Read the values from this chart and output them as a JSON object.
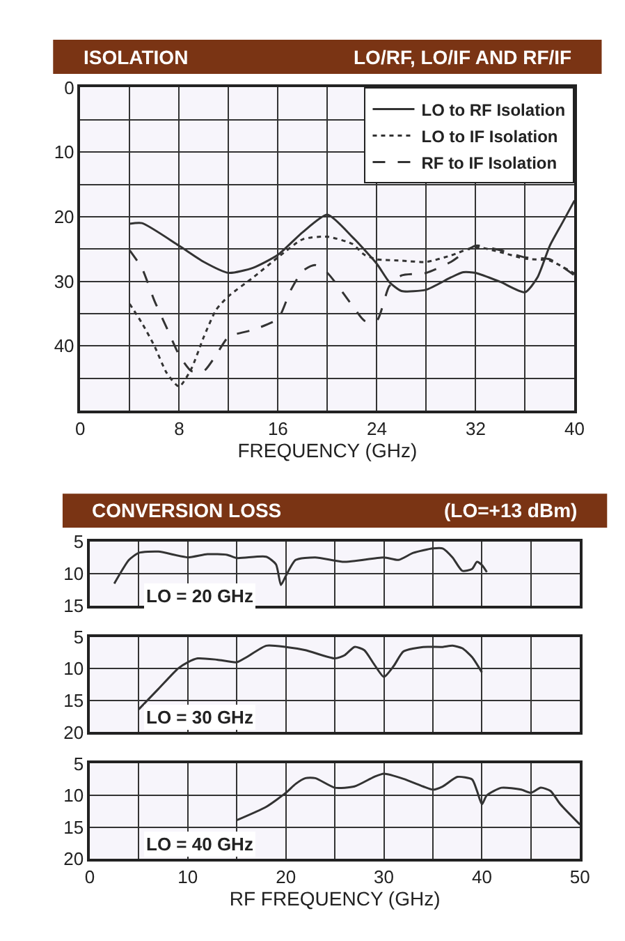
{
  "chart_data": [
    {
      "type": "line",
      "title": "ISOLATION",
      "subtitle": "LO/RF, LO/IF AND RF/IF",
      "xlabel": "FREQUENCY (GHz)",
      "xlim": [
        0,
        40
      ],
      "xticks": [
        0,
        {
          "value": 4,
          "label": null
        },
        8,
        {
          "value": 12,
          "label": null
        },
        16,
        {
          "value": 20,
          "label": null
        },
        24,
        {
          "value": 28,
          "label": null
        },
        32,
        {
          "value": 36,
          "label": null
        },
        40
      ],
      "ylim": [
        50,
        0
      ],
      "yticks": [
        0,
        {
          "value": 5,
          "label": null
        },
        10,
        {
          "value": 15,
          "label": null
        },
        20,
        {
          "value": 25,
          "label": null
        },
        30,
        {
          "value": 35,
          "label": null
        },
        40,
        {
          "value": 45,
          "label": null
        },
        {
          "value": 50,
          "label": null
        }
      ],
      "grid": true,
      "legend": "top right",
      "series": [
        {
          "name": "LO to RF Isolation",
          "color": "#333333",
          "line_style": "solid",
          "x": [
            4,
            5,
            8,
            10,
            12,
            14,
            16,
            18,
            20,
            22,
            24,
            25,
            26,
            28,
            30,
            31,
            32,
            34,
            36,
            37,
            38,
            39,
            40
          ],
          "values": [
            21.1,
            21,
            24.5,
            27,
            28.7,
            27.9,
            25.9,
            22.4,
            19.7,
            23.1,
            27.3,
            30.1,
            31.5,
            31.3,
            29.4,
            28.6,
            28.7,
            30.1,
            31.7,
            29.4,
            24.5,
            21,
            17.5
          ]
        },
        {
          "name": "LO to IF Isolation",
          "color": "#333333",
          "line_style": "dotted",
          "x": [
            4,
            5,
            6,
            7,
            8,
            9,
            10,
            11,
            12,
            14,
            16,
            18,
            20,
            22,
            23,
            24,
            26,
            28,
            30,
            32,
            34,
            36,
            38,
            40
          ],
          "values": [
            33.5,
            36.5,
            40,
            44.2,
            46.3,
            43.5,
            38.6,
            34.4,
            32.3,
            29.4,
            26.3,
            23.5,
            23.1,
            24.2,
            25.9,
            26.6,
            26.8,
            27,
            26,
            24.7,
            25.5,
            26.5,
            26.8,
            28.8
          ]
        },
        {
          "name": "RF to IF Isolation",
          "color": "#333333",
          "line_style": "dashed",
          "x": [
            4,
            5,
            6,
            7,
            8,
            9,
            10,
            11,
            12,
            14,
            16,
            17,
            18,
            19,
            20,
            22,
            23,
            24,
            25,
            26,
            28,
            30,
            32,
            34,
            36,
            38,
            40
          ],
          "values": [
            25.2,
            28,
            33,
            37.2,
            41.4,
            43.9,
            43.9,
            41.4,
            38.6,
            37.5,
            35.8,
            31.5,
            28.4,
            27.5,
            28.7,
            33.7,
            36.1,
            36.1,
            30.8,
            29.1,
            28.7,
            27,
            24.5,
            25.2,
            26.3,
            26.6,
            29.1
          ]
        }
      ]
    },
    {
      "type": "line",
      "title": "CONVERSION LOSS",
      "subtitle": "(LO=+13 dBm)",
      "xlim": [
        0,
        50
      ],
      "xticks": [
        0,
        {
          "value": 5,
          "label": null
        },
        10,
        {
          "value": 15,
          "label": null
        },
        20,
        {
          "value": 25,
          "label": null
        },
        30,
        {
          "value": 35,
          "label": null
        },
        40,
        {
          "value": 45,
          "label": null
        },
        50
      ],
      "ylim": [
        15,
        5
      ],
      "yticks": [
        5,
        10,
        15
      ],
      "grid": true,
      "tick_labels": "y",
      "series": [
        {
          "name": "LO = 20 GHz",
          "color": "#333333",
          "x": [
            2.5,
            4,
            5,
            7,
            10,
            12,
            14,
            15,
            18,
            19,
            19.5,
            20,
            21,
            23,
            26,
            30,
            31.5,
            33,
            35,
            36,
            37,
            38,
            39,
            39.5,
            40,
            40.5
          ],
          "values": [
            11.6,
            7.9,
            6.8,
            6.6,
            7.5,
            7,
            7.1,
            7.6,
            7.4,
            8.6,
            11.8,
            10.4,
            7.9,
            7.5,
            8.2,
            7.5,
            7.9,
            6.8,
            6.1,
            6.1,
            7.5,
            9.6,
            9.3,
            8.2,
            8.7,
            9.8
          ]
        }
      ]
    },
    {
      "type": "line",
      "xlim": [
        0,
        50
      ],
      "xticks": [
        0,
        {
          "value": 5,
          "label": null
        },
        10,
        {
          "value": 15,
          "label": null
        },
        20,
        {
          "value": 25,
          "label": null
        },
        30,
        {
          "value": 35,
          "label": null
        },
        40,
        {
          "value": 45,
          "label": null
        },
        50
      ],
      "ylim": [
        20,
        5
      ],
      "yticks": [
        5,
        10,
        15,
        20
      ],
      "grid": true,
      "tick_labels": "y",
      "series": [
        {
          "name": "LO = 30 GHz",
          "color": "#333333",
          "x": [
            5,
            7,
            9,
            10,
            11,
            13,
            15,
            16,
            18,
            20,
            22,
            25,
            26,
            27,
            28,
            29,
            30,
            31,
            32,
            34,
            36,
            37,
            38,
            39,
            40
          ],
          "values": [
            16.4,
            13.2,
            10,
            9,
            8.4,
            8.6,
            9,
            8.2,
            6.4,
            6.6,
            7.1,
            8.4,
            7.9,
            6.6,
            7.1,
            9.3,
            11.3,
            9.6,
            7.3,
            6.6,
            6.6,
            6.4,
            6.8,
            8.2,
            10.6
          ]
        }
      ]
    },
    {
      "type": "line",
      "xlabel": "RF FREQUENCY (GHz)",
      "xlim": [
        0,
        50
      ],
      "xticks": [
        0,
        {
          "value": 5,
          "label": null
        },
        10,
        {
          "value": 15,
          "label": null
        },
        20,
        {
          "value": 25,
          "label": null
        },
        30,
        {
          "value": 35,
          "label": null
        },
        40,
        {
          "value": 45,
          "label": null
        },
        50
      ],
      "ylim": [
        20,
        5
      ],
      "yticks": [
        5,
        10,
        15,
        20
      ],
      "grid": true,
      "series": [
        {
          "name": "LO = 40 GHz",
          "color": "#333333",
          "x": [
            15,
            18,
            20,
            21,
            22,
            23,
            25,
            27,
            29,
            30,
            32,
            34,
            35,
            36,
            37.5,
            39,
            39.5,
            40,
            40.5,
            42,
            44,
            45,
            46,
            47,
            48,
            50
          ],
          "values": [
            13.9,
            11.8,
            9.6,
            8.2,
            7.3,
            7.3,
            8.8,
            8.6,
            7.1,
            6.6,
            7.4,
            8.6,
            9.1,
            8.6,
            7.1,
            7.5,
            9.3,
            11.4,
            10,
            8.8,
            9.1,
            9.6,
            8.8,
            9.3,
            11.4,
            14.6
          ]
        }
      ]
    }
  ]
}
